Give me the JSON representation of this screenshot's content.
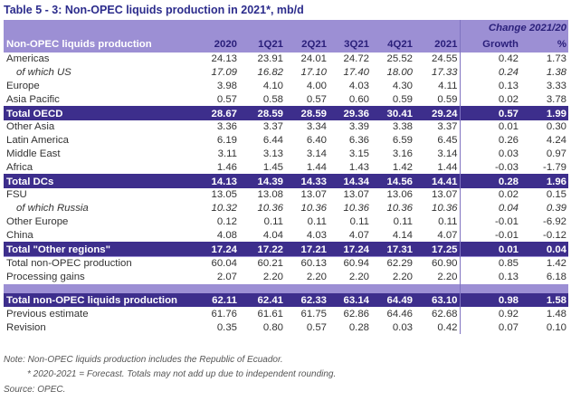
{
  "title": "Table 5 - 3: Non-OPEC liquids production in 2021*, mb/d",
  "header": {
    "change_label": "Change 2021/20",
    "row_label": "Non-OPEC liquids production",
    "columns": [
      "2020",
      "1Q21",
      "2Q21",
      "3Q21",
      "4Q21",
      "2021",
      "Growth",
      "%"
    ]
  },
  "rows": [
    {
      "label": "Americas",
      "values": [
        "24.13",
        "23.91",
        "24.01",
        "24.72",
        "25.52",
        "24.55",
        "0.42",
        "1.73"
      ],
      "style": "normal"
    },
    {
      "label": "of which US",
      "values": [
        "17.09",
        "16.82",
        "17.10",
        "17.40",
        "18.00",
        "17.33",
        "0.24",
        "1.38"
      ],
      "style": "sub"
    },
    {
      "label": "Europe",
      "values": [
        "3.98",
        "4.10",
        "4.00",
        "4.03",
        "4.30",
        "4.11",
        "0.13",
        "3.33"
      ],
      "style": "normal"
    },
    {
      "label": "Asia Pacific",
      "values": [
        "0.57",
        "0.58",
        "0.57",
        "0.60",
        "0.59",
        "0.59",
        "0.02",
        "3.78"
      ],
      "style": "normal"
    },
    {
      "label": "Total OECD",
      "values": [
        "28.67",
        "28.59",
        "28.59",
        "29.36",
        "30.41",
        "29.24",
        "0.57",
        "1.99"
      ],
      "style": "total"
    },
    {
      "label": "Other Asia",
      "values": [
        "3.36",
        "3.37",
        "3.34",
        "3.39",
        "3.38",
        "3.37",
        "0.01",
        "0.30"
      ],
      "style": "normal"
    },
    {
      "label": "Latin America",
      "values": [
        "6.19",
        "6.44",
        "6.40",
        "6.36",
        "6.59",
        "6.45",
        "0.26",
        "4.24"
      ],
      "style": "normal"
    },
    {
      "label": "Middle East",
      "values": [
        "3.11",
        "3.13",
        "3.14",
        "3.15",
        "3.16",
        "3.14",
        "0.03",
        "0.97"
      ],
      "style": "normal"
    },
    {
      "label": "Africa",
      "values": [
        "1.46",
        "1.45",
        "1.44",
        "1.43",
        "1.42",
        "1.44",
        "-0.03",
        "-1.79"
      ],
      "style": "normal"
    },
    {
      "label": "Total DCs",
      "values": [
        "14.13",
        "14.39",
        "14.33",
        "14.34",
        "14.56",
        "14.41",
        "0.28",
        "1.96"
      ],
      "style": "total"
    },
    {
      "label": "FSU",
      "values": [
        "13.05",
        "13.08",
        "13.07",
        "13.07",
        "13.06",
        "13.07",
        "0.02",
        "0.15"
      ],
      "style": "normal"
    },
    {
      "label": "of which Russia",
      "values": [
        "10.32",
        "10.36",
        "10.36",
        "10.36",
        "10.36",
        "10.36",
        "0.04",
        "0.39"
      ],
      "style": "sub"
    },
    {
      "label": "Other Europe",
      "values": [
        "0.12",
        "0.11",
        "0.11",
        "0.11",
        "0.11",
        "0.11",
        "-0.01",
        "-6.92"
      ],
      "style": "normal"
    },
    {
      "label": "China",
      "values": [
        "4.08",
        "4.04",
        "4.03",
        "4.07",
        "4.14",
        "4.07",
        "-0.01",
        "-0.12"
      ],
      "style": "normal"
    },
    {
      "label": "Total \"Other regions\"",
      "values": [
        "17.24",
        "17.22",
        "17.21",
        "17.24",
        "17.31",
        "17.25",
        "0.01",
        "0.04"
      ],
      "style": "total"
    },
    {
      "label": "Total non-OPEC production",
      "values": [
        "60.04",
        "60.21",
        "60.13",
        "60.94",
        "62.29",
        "60.90",
        "0.85",
        "1.42"
      ],
      "style": "normal"
    },
    {
      "label": "Processing gains",
      "values": [
        "2.07",
        "2.20",
        "2.20",
        "2.20",
        "2.20",
        "2.20",
        "0.13",
        "6.18"
      ],
      "style": "normal"
    },
    {
      "label": "Total non-OPEC liquids production",
      "values": [
        "62.11",
        "62.41",
        "62.33",
        "63.14",
        "64.49",
        "63.10",
        "0.98",
        "1.58"
      ],
      "style": "total"
    },
    {
      "label": "Previous estimate",
      "values": [
        "61.76",
        "61.61",
        "61.75",
        "62.86",
        "64.46",
        "62.68",
        "0.92",
        "1.48"
      ],
      "style": "normal"
    },
    {
      "label": "Revision",
      "values": [
        "0.35",
        "0.80",
        "0.57",
        "0.28",
        "0.03",
        "0.42",
        "0.07",
        "0.10"
      ],
      "style": "normal"
    }
  ],
  "notes": [
    "Note: Non-OPEC liquids production includes the Republic of Ecuador.",
    "* 2020-2021 = Forecast. Totals may not add up due to independent rounding.",
    "Source: OPEC."
  ]
}
